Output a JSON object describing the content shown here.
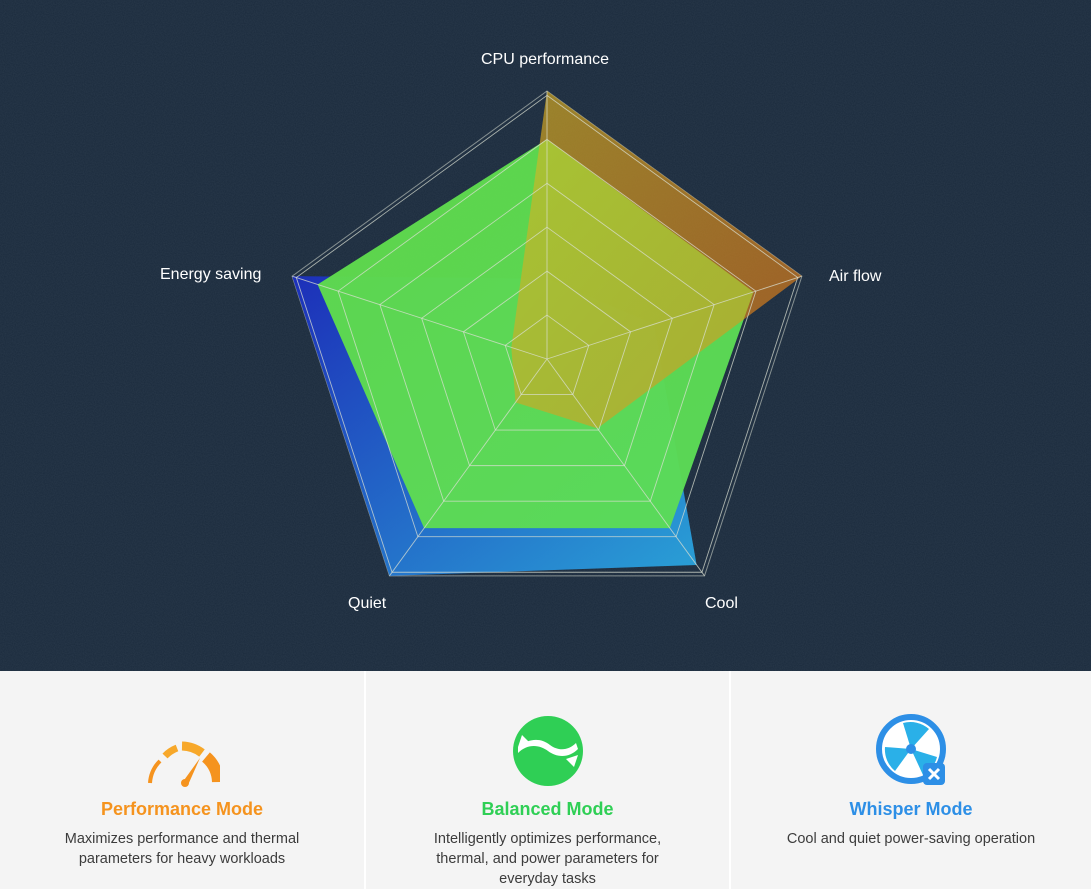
{
  "chart_data": {
    "type": "radar",
    "axes": [
      "CPU performance",
      "Air flow",
      "Cool",
      "Quiet",
      "Energy saving"
    ],
    "rmax": 10,
    "rings": 6,
    "series": [
      {
        "name": "Whisper Mode",
        "color": "#2d8fe6",
        "colors": [
          "#1c2fbf",
          "#2aa6de"
        ],
        "values": [
          3,
          4.2,
          9.5,
          10,
          10
        ]
      },
      {
        "name": "Balanced Mode",
        "color": "#2fcf55",
        "colors": [
          "#2fcf55",
          "#28d06a"
        ],
        "values": [
          8.2,
          8.1,
          7.8,
          7.8,
          9
        ]
      },
      {
        "name": "Performance Mode",
        "color": "#f5931e",
        "colors": [
          "#c9a623",
          "#cf6b1c"
        ],
        "values": [
          10,
          10,
          3.2,
          2,
          1.4
        ]
      }
    ]
  },
  "modes": [
    {
      "title": "Performance Mode",
      "description": "Maximizes performance and thermal parameters for heavy workloads",
      "color": "#f5931e",
      "icon": "speedometer-icon"
    },
    {
      "title": "Balanced Mode",
      "description": "Intelligently optimizes performance, thermal, and power parameters for everyday tasks",
      "color": "#2fcf55",
      "icon": "balance-cycle-icon"
    },
    {
      "title": "Whisper Mode",
      "description": "Cool and quiet power-saving operation",
      "color": "#2d8fe6",
      "icon": "quiet-fan-icon"
    }
  ],
  "colors": {
    "panel_background": "#1a2a3c",
    "card_background": "#f4f4f4",
    "grid": "#d9dfd2",
    "label": "#ffffff"
  }
}
